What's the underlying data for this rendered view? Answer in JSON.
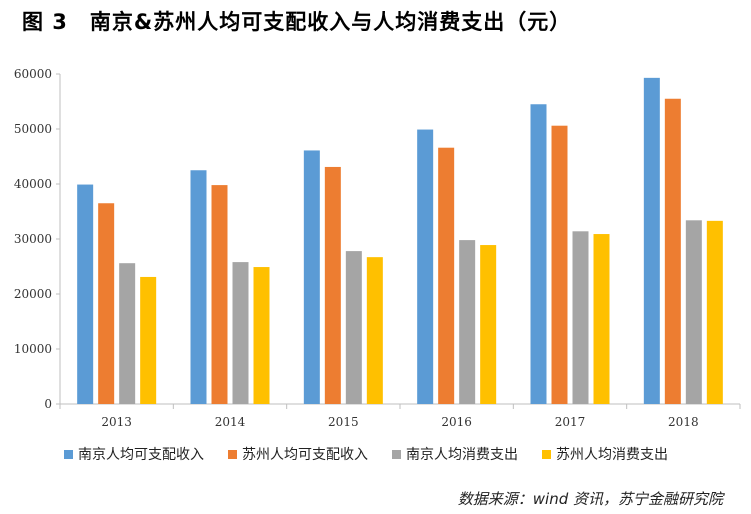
{
  "title": "图 3　南京&苏州人均可支配收入与人均消费支出（元）",
  "source": "数据来源：wind 资讯，苏宁金融研究院",
  "chart_data": {
    "type": "bar",
    "categories": [
      "2013",
      "2014",
      "2015",
      "2016",
      "2017",
      "2018"
    ],
    "ylim": [
      0,
      60000
    ],
    "yticks": [
      "0",
      "10000",
      "20000",
      "30000",
      "40000",
      "50000",
      "60000"
    ],
    "grid": false,
    "legend_position": "bottom",
    "series": [
      {
        "name": "南京人均可支配收入",
        "color": "#5b9bd5",
        "values": [
          39900,
          42500,
          46100,
          49900,
          54500,
          59300
        ]
      },
      {
        "name": "苏州人均可支配收入",
        "color": "#ed7d31",
        "values": [
          36500,
          39800,
          43100,
          46600,
          50600,
          55500
        ]
      },
      {
        "name": "南京人均消费支出",
        "color": "#a5a5a5",
        "values": [
          25600,
          25800,
          27800,
          29800,
          31400,
          33400
        ]
      },
      {
        "name": "苏州人均消费支出",
        "color": "#ffc000",
        "values": [
          23100,
          24900,
          26700,
          28900,
          30900,
          33300
        ]
      }
    ]
  }
}
